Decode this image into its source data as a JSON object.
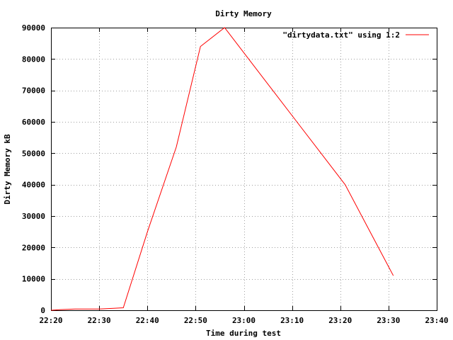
{
  "chart_data": {
    "type": "line",
    "title": "Dirty Memory",
    "xlabel": "Time during test",
    "ylabel": "Dirty Memory kB",
    "xlim": [
      "22:20",
      "23:40"
    ],
    "ylim": [
      0,
      90000
    ],
    "x_ticks": [
      "22:20",
      "22:30",
      "22:40",
      "22:50",
      "23:00",
      "23:10",
      "23:20",
      "23:30",
      "23:40"
    ],
    "y_ticks": [
      "0",
      "10000",
      "20000",
      "30000",
      "40000",
      "50000",
      "60000",
      "70000",
      "80000",
      "90000"
    ],
    "grid": true,
    "legend_position": "top-right",
    "series": [
      {
        "name": "\"dirtydata.txt\" using 1:2",
        "color": "#ff0000",
        "x": [
          "22:20",
          "22:22",
          "22:25",
          "22:30",
          "22:33",
          "22:35",
          "22:40",
          "22:46",
          "22:51",
          "22:56",
          "23:01",
          "23:06",
          "23:11",
          "23:16",
          "23:21",
          "23:26",
          "23:31"
        ],
        "y": [
          0,
          200,
          400,
          400,
          600,
          800,
          25000,
          52000,
          84000,
          90000,
          80000,
          70000,
          60000,
          50000,
          40000,
          25500,
          11000
        ]
      }
    ]
  }
}
